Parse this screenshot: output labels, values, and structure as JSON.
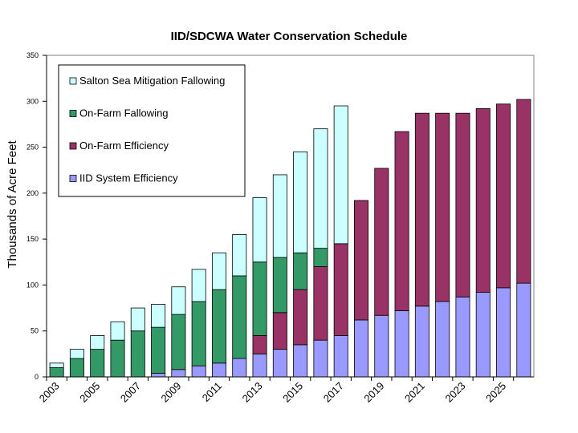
{
  "chart_data": {
    "type": "bar",
    "stacked": true,
    "title": "IID/SDCWA Water Conservation Schedule",
    "xlabel": "",
    "ylabel": "Thousands of Acre Feet",
    "ylim": [
      0,
      350
    ],
    "yticks": [
      0,
      50,
      100,
      150,
      200,
      250,
      300,
      350
    ],
    "grid": false,
    "legend_position": "upper-left",
    "categories": [
      "2003",
      "2004",
      "2005",
      "2006",
      "2007",
      "2008",
      "2009",
      "2010",
      "2011",
      "2012",
      "2013",
      "2014",
      "2015",
      "2016",
      "2017",
      "2018",
      "2019",
      "2020",
      "2021",
      "2022",
      "2023",
      "2024",
      "2025",
      "2026"
    ],
    "xtick_labels": [
      "2003",
      "2005",
      "2007",
      "2009",
      "2011",
      "2013",
      "2015",
      "2017",
      "2019",
      "2021",
      "2023",
      "2025"
    ],
    "series": [
      {
        "name": "IID System Efficiency",
        "color": "#9999ff",
        "values": [
          0,
          0,
          0,
          0,
          0,
          4,
          8,
          12,
          15,
          20,
          25,
          30,
          35,
          40,
          45,
          62,
          67,
          72,
          77,
          82,
          87,
          92,
          97,
          102
        ]
      },
      {
        "name": "On-Farm Efficiency",
        "color": "#993366",
        "values": [
          0,
          0,
          0,
          0,
          0,
          0,
          0,
          0,
          0,
          0,
          20,
          40,
          60,
          80,
          100,
          130,
          160,
          195,
          210,
          205,
          200,
          200,
          200,
          200
        ]
      },
      {
        "name": "On-Farm Fallowing",
        "color": "#339966",
        "values": [
          10,
          20,
          30,
          40,
          50,
          50,
          60,
          70,
          80,
          90,
          80,
          60,
          40,
          20,
          0,
          0,
          0,
          0,
          0,
          0,
          0,
          0,
          0,
          0
        ]
      },
      {
        "name": "Salton Sea Mitigation Fallowing",
        "color": "#ccffff",
        "values": [
          5,
          10,
          15,
          20,
          25,
          25,
          30,
          35,
          40,
          45,
          70,
          90,
          110,
          130,
          150,
          0,
          0,
          0,
          0,
          0,
          0,
          0,
          0,
          0
        ]
      }
    ],
    "legend_order": [
      "Salton Sea Mitigation Fallowing",
      "On-Farm Fallowing",
      "On-Farm Efficiency",
      "IID System Efficiency"
    ]
  }
}
